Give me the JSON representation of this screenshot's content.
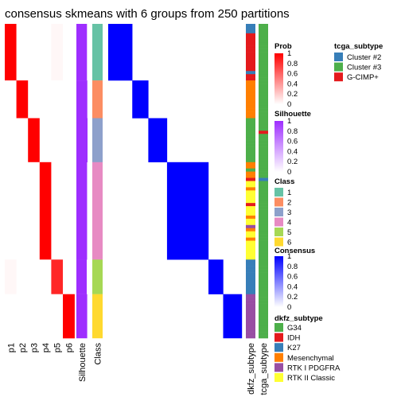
{
  "chart_data": {
    "type": "heatmap",
    "title": "consensus skmeans with 6 groups from 250 partitions",
    "n_samples": 100,
    "prob_columns": [
      "p1",
      "p2",
      "p3",
      "p4",
      "p5",
      "p6"
    ],
    "column_labels": {
      "silhouette": "Silhouette",
      "class": "Class",
      "dkfz": "dkfz_subtype",
      "tcga": "tcga_subtype"
    },
    "groups": [
      {
        "class": "1",
        "rows": 18,
        "prob": [
          1.0,
          0.0,
          0.0,
          0.0,
          0.03,
          0.0
        ],
        "silhouette": 0.95
      },
      {
        "class": "2",
        "rows": 12,
        "prob": [
          0.0,
          1.0,
          0.0,
          0.0,
          0.0,
          0.0
        ],
        "silhouette": 0.98
      },
      {
        "class": "3",
        "rows": 14,
        "prob": [
          0.0,
          0.0,
          1.0,
          0.0,
          0.0,
          0.0
        ],
        "silhouette": 1.0
      },
      {
        "class": "4",
        "rows": 31,
        "prob": [
          0.0,
          0.0,
          0.0,
          1.0,
          0.0,
          0.0
        ],
        "silhouette": 0.96
      },
      {
        "class": "5",
        "rows": 11,
        "prob": [
          0.03,
          0.0,
          0.0,
          0.0,
          0.85,
          0.0
        ],
        "silhouette": 0.93
      },
      {
        "class": "6",
        "rows": 14,
        "prob": [
          0.0,
          0.0,
          0.0,
          0.0,
          0.0,
          1.0
        ],
        "silhouette": 0.97
      }
    ],
    "dkfz_sequence": [
      "K27",
      "K27",
      "K27",
      "IDH",
      "IDH",
      "IDH",
      "IDH",
      "IDH",
      "IDH",
      "IDH",
      "IDH",
      "IDH",
      "IDH",
      "IDH",
      "IDH",
      "K27",
      "IDH",
      "IDH",
      "Mesenchymal",
      "Mesenchymal",
      "Mesenchymal",
      "Mesenchymal",
      "Mesenchymal",
      "Mesenchymal",
      "Mesenchymal",
      "Mesenchymal",
      "Mesenchymal",
      "Mesenchymal",
      "Mesenchymal",
      "Mesenchymal",
      "G34",
      "G34",
      "G34",
      "G34",
      "G34",
      "G34",
      "G34",
      "G34",
      "G34",
      "G34",
      "G34",
      "G34",
      "G34",
      "G34",
      "Mesenchymal",
      "Mesenchymal",
      "G34",
      "Mesenchymal",
      "Mesenchymal",
      "IDH",
      "RTK II Classic",
      "RTK II Classic",
      "Mesenchymal",
      "RTK II Classic",
      "RTK II Classic",
      "RTK II Classic",
      "RTK II Classic",
      "IDH",
      "RTK II Classic",
      "RTK II Classic",
      "RTK II Classic",
      "Mesenchymal",
      "RTK II Classic",
      "RTK II Classic",
      "RTK I PDGFRA",
      "Mesenchymal",
      "RTK II Classic",
      "RTK II Classic",
      "Mesenchymal",
      "RTK II Classic",
      "RTK II Classic",
      "RTK II Classic",
      "RTK II Classic",
      "RTK II Classic",
      "RTK II Classic",
      "K27",
      "K27",
      "K27",
      "K27",
      "K27",
      "K27",
      "K27",
      "K27",
      "K27",
      "K27",
      "K27",
      "RTK I PDGFRA",
      "RTK I PDGFRA",
      "RTK I PDGFRA",
      "RTK I PDGFRA",
      "RTK I PDGFRA",
      "RTK I PDGFRA",
      "RTK I PDGFRA",
      "RTK I PDGFRA",
      "RTK I PDGFRA",
      "RTK I PDGFRA",
      "RTK I PDGFRA",
      "RTK I PDGFRA",
      "RTK I PDGFRA",
      "RTK I PDGFRA"
    ],
    "tcga_sequence": [
      "Cluster #3",
      "Cluster #3",
      "Cluster #3",
      "Cluster #3",
      "Cluster #3",
      "Cluster #3",
      "Cluster #3",
      "Cluster #3",
      "Cluster #3",
      "Cluster #3",
      "Cluster #3",
      "Cluster #3",
      "Cluster #3",
      "Cluster #3",
      "Cluster #3",
      "Cluster #3",
      "Cluster #3",
      "Cluster #3",
      "Cluster #3",
      "Cluster #3",
      "Cluster #3",
      "Cluster #3",
      "Cluster #3",
      "Cluster #3",
      "Cluster #3",
      "Cluster #3",
      "Cluster #3",
      "Cluster #3",
      "Cluster #3",
      "Cluster #3",
      "Cluster #3",
      "Cluster #3",
      "Cluster #3",
      "Cluster #3",
      "G-CIMP+",
      "Cluster #3",
      "Cluster #3",
      "Cluster #3",
      "Cluster #3",
      "Cluster #3",
      "Cluster #3",
      "Cluster #3",
      "Cluster #3",
      "Cluster #3",
      "Cluster #3",
      "Cluster #3",
      "Cluster #3",
      "Cluster #3",
      "Cluster #3",
      "Cluster #2",
      "Cluster #3",
      "Cluster #3",
      "Cluster #3",
      "Cluster #3",
      "Cluster #3",
      "Cluster #3",
      "Cluster #3",
      "Cluster #3",
      "Cluster #3",
      "Cluster #3",
      "Cluster #3",
      "Cluster #3",
      "Cluster #3",
      "Cluster #3",
      "Cluster #3",
      "Cluster #3",
      "Cluster #3",
      "Cluster #3",
      "Cluster #3",
      "Cluster #3",
      "Cluster #3",
      "Cluster #3",
      "Cluster #3",
      "Cluster #3",
      "Cluster #3",
      "Cluster #3",
      "Cluster #3",
      "Cluster #3",
      "Cluster #3",
      "Cluster #3",
      "Cluster #3",
      "Cluster #3",
      "Cluster #3",
      "Cluster #3",
      "Cluster #3",
      "Cluster #3",
      "Cluster #3",
      "Cluster #3",
      "Cluster #3",
      "Cluster #3",
      "Cluster #3",
      "Cluster #3",
      "Cluster #3",
      "Cluster #3",
      "Cluster #3",
      "Cluster #3",
      "Cluster #3",
      "Cluster #3",
      "Cluster #3",
      "Cluster #3"
    ],
    "legends": {
      "prob": {
        "title": "Prob",
        "ticks": [
          "1",
          "0.8",
          "0.6",
          "0.4",
          "0.2",
          "0"
        ]
      },
      "silhouette": {
        "title": "Silhouette",
        "ticks": [
          "1",
          "0.8",
          "0.6",
          "0.4",
          "0.2",
          "0"
        ]
      },
      "class": {
        "title": "Class",
        "entries": [
          {
            "label": "1",
            "color": "#66c2a5"
          },
          {
            "label": "2",
            "color": "#fc8d62"
          },
          {
            "label": "3",
            "color": "#8da0cb"
          },
          {
            "label": "4",
            "color": "#e78ac3"
          },
          {
            "label": "5",
            "color": "#a6d854"
          },
          {
            "label": "6",
            "color": "#ffd92f"
          }
        ]
      },
      "consensus": {
        "title": "Consensus",
        "ticks": [
          "1",
          "0.8",
          "0.6",
          "0.4",
          "0.2",
          "0"
        ]
      },
      "dkfz": {
        "title": "dkfz_subtype",
        "entries": [
          {
            "label": "G34",
            "color": "#4daf4a"
          },
          {
            "label": "IDH",
            "color": "#e41a1c"
          },
          {
            "label": "K27",
            "color": "#377eb8"
          },
          {
            "label": "Mesenchymal",
            "color": "#ff7f00"
          },
          {
            "label": "RTK I PDGFRA",
            "color": "#984ea3"
          },
          {
            "label": "RTK II Classic",
            "color": "#ffff33"
          }
        ]
      },
      "tcga": {
        "title": "tcga_subtype",
        "entries": [
          {
            "label": "Cluster #2",
            "color": "#377eb8"
          },
          {
            "label": "Cluster #3",
            "color": "#4daf4a"
          },
          {
            "label": "G-CIMP+",
            "color": "#e41a1c"
          }
        ]
      }
    },
    "colors": {
      "prob_high": "#ff0000",
      "silhouette_high": "#9e2eff",
      "consensus_high": "#0000ff"
    }
  }
}
